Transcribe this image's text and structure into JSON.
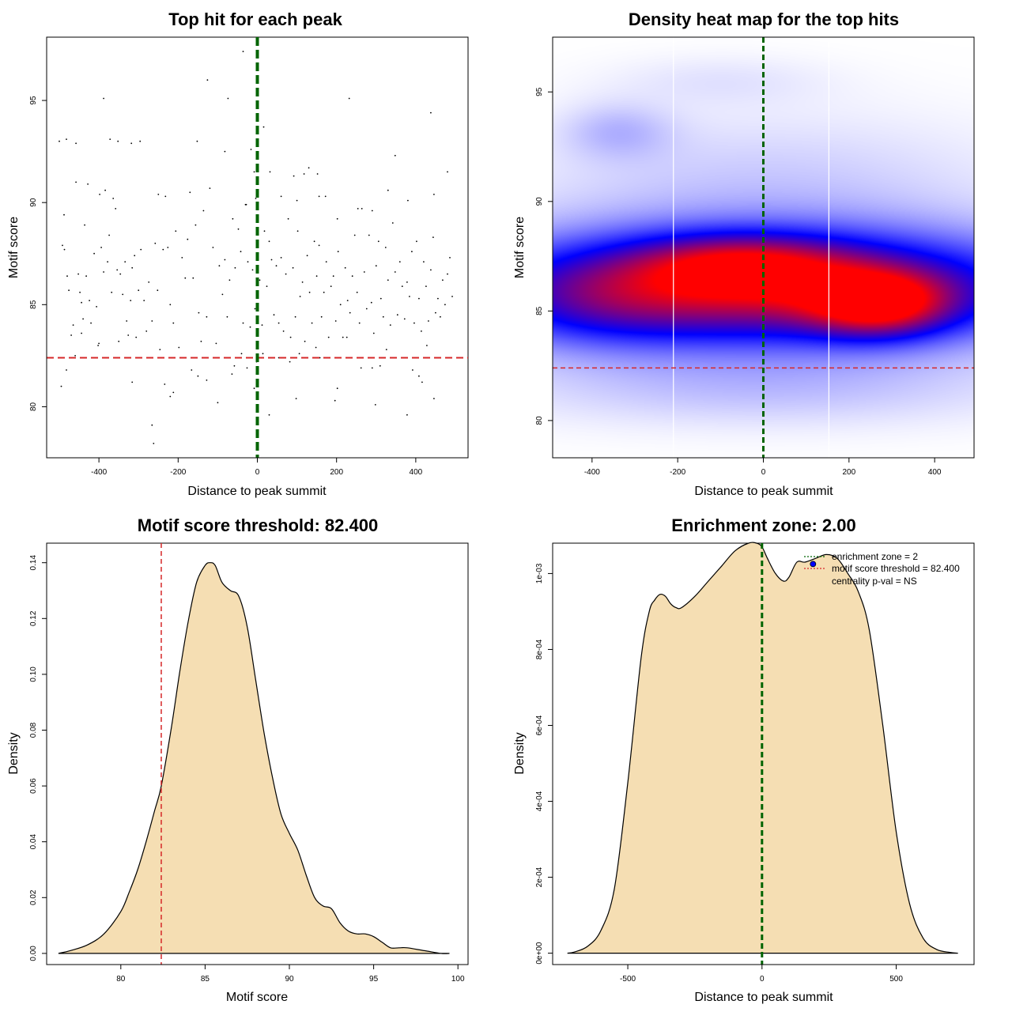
{
  "colors": {
    "threshold": "#d62728",
    "zone": "#006400",
    "fill": "#f5deb3",
    "point": "#000000",
    "heat_low": "#ffffff",
    "heat_mid": "#0000ff",
    "heat_high": "#ff0000",
    "pval_dot": "#0000ff"
  },
  "chart_data": [
    {
      "id": "scatter",
      "type": "scatter",
      "title": "Top hit for each peak",
      "xlabel": "Distance to peak summit",
      "ylabel": "Motif score",
      "xlim": [
        -532,
        532
      ],
      "ylim": [
        77.5,
        98.1
      ],
      "xticks": [
        -400,
        -200,
        0,
        200,
        400
      ],
      "yticks": [
        80,
        85,
        90,
        95
      ],
      "threshold": 82.4,
      "zone_x": 0,
      "points": [
        [
          -488,
          89.4
        ],
        [
          -492,
          87.9
        ],
        [
          -487,
          87.7
        ],
        [
          -480,
          86.4
        ],
        [
          -476,
          85.7
        ],
        [
          -470,
          83.5
        ],
        [
          -465,
          84.0
        ],
        [
          -458,
          91.0
        ],
        [
          -452,
          86.5
        ],
        [
          -448,
          85.6
        ],
        [
          -444,
          85.1
        ],
        [
          -440,
          84.3
        ],
        [
          -436,
          88.9
        ],
        [
          -432,
          86.4
        ],
        [
          -428,
          90.9
        ],
        [
          -424,
          85.2
        ],
        [
          -420,
          84.1
        ],
        [
          -412,
          87.5
        ],
        [
          -406,
          84.9
        ],
        [
          -402,
          83.0
        ],
        [
          -398,
          90.4
        ],
        [
          -394,
          87.8
        ],
        [
          -388,
          86.6
        ],
        [
          -384,
          90.6
        ],
        [
          -378,
          87.1
        ],
        [
          -374,
          88.4
        ],
        [
          -368,
          85.6
        ],
        [
          -364,
          90.2
        ],
        [
          -358,
          89.7
        ],
        [
          -354,
          86.7
        ],
        [
          -350,
          83.2
        ],
        [
          -346,
          86.5
        ],
        [
          -340,
          85.5
        ],
        [
          -334,
          87.1
        ],
        [
          -330,
          84.2
        ],
        [
          -326,
          83.5
        ],
        [
          -320,
          85.2
        ],
        [
          -316,
          86.8
        ],
        [
          -310,
          87.4
        ],
        [
          -306,
          83.4
        ],
        [
          -300,
          85.7
        ],
        [
          -294,
          87.7
        ],
        [
          -286,
          85.2
        ],
        [
          -280,
          83.7
        ],
        [
          -274,
          86.1
        ],
        [
          -266,
          84.2
        ],
        [
          -258,
          88.0
        ],
        [
          -252,
          85.7
        ],
        [
          -246,
          82.8
        ],
        [
          -238,
          87.7
        ],
        [
          -232,
          90.3
        ],
        [
          -226,
          87.8
        ],
        [
          -220,
          85.0
        ],
        [
          -212,
          84.1
        ],
        [
          -206,
          88.6
        ],
        [
          -198,
          82.9
        ],
        [
          -190,
          87.3
        ],
        [
          -182,
          86.3
        ],
        [
          -176,
          88.2
        ],
        [
          -170,
          90.5
        ],
        [
          -162,
          86.3
        ],
        [
          -156,
          88.9
        ],
        [
          -148,
          84.6
        ],
        [
          -142,
          83.2
        ],
        [
          -136,
          89.6
        ],
        [
          -128,
          84.4
        ],
        [
          -120,
          90.7
        ],
        [
          -112,
          87.8
        ],
        [
          -104,
          83.1
        ],
        [
          -96,
          86.9
        ],
        [
          -88,
          85.5
        ],
        [
          -82,
          87.2
        ],
        [
          -76,
          84.4
        ],
        [
          -70,
          86.2
        ],
        [
          -62,
          89.2
        ],
        [
          -56,
          86.8
        ],
        [
          -48,
          88.7
        ],
        [
          -42,
          87.6
        ],
        [
          -36,
          84.1
        ],
        [
          -30,
          89.9
        ],
        [
          -24,
          87.1
        ],
        [
          -18,
          83.9
        ],
        [
          -12,
          86.7
        ],
        [
          -6,
          84.8
        ],
        [
          -2,
          88.1
        ],
        [
          -495,
          81.0
        ],
        [
          -482,
          81.8
        ],
        [
          -460,
          82.5
        ],
        [
          -444,
          83.6
        ],
        [
          -400,
          83.1
        ],
        [
          -316,
          81.2
        ],
        [
          -266,
          79.1
        ],
        [
          -262,
          78.2
        ],
        [
          -234,
          81.1
        ],
        [
          -220,
          80.5
        ],
        [
          -212,
          80.7
        ],
        [
          -166,
          81.8
        ],
        [
          -150,
          81.5
        ],
        [
          -128,
          81.3
        ],
        [
          -100,
          80.2
        ],
        [
          -64,
          81.6
        ],
        [
          -58,
          82.0
        ],
        [
          -40,
          82.6
        ],
        [
          -26,
          81.9
        ],
        [
          -8,
          80.9
        ],
        [
          -2,
          82.2
        ],
        [
          -500,
          93.0
        ],
        [
          -482,
          93.1
        ],
        [
          -458,
          92.9
        ],
        [
          -388,
          95.1
        ],
        [
          -372,
          93.1
        ],
        [
          -352,
          93.0
        ],
        [
          -318,
          92.9
        ],
        [
          -296,
          93.0
        ],
        [
          -250,
          90.4
        ],
        [
          -152,
          93.0
        ],
        [
          -126,
          96.0
        ],
        [
          -82,
          92.5
        ],
        [
          -74,
          95.1
        ],
        [
          -36,
          97.4
        ],
        [
          -28,
          89.9
        ],
        [
          -16,
          92.6
        ],
        [
          -8,
          91.5
        ],
        [
          -4,
          90.2
        ],
        [
          6,
          86.2
        ],
        [
          12,
          84.0
        ],
        [
          18,
          88.6
        ],
        [
          24,
          85.9
        ],
        [
          30,
          88.1
        ],
        [
          36,
          87.2
        ],
        [
          42,
          84.5
        ],
        [
          48,
          86.9
        ],
        [
          54,
          84.1
        ],
        [
          60,
          87.3
        ],
        [
          66,
          83.7
        ],
        [
          72,
          86.5
        ],
        [
          78,
          89.2
        ],
        [
          84,
          83.4
        ],
        [
          90,
          86.8
        ],
        [
          96,
          84.4
        ],
        [
          102,
          88.6
        ],
        [
          108,
          85.4
        ],
        [
          114,
          86.1
        ],
        [
          120,
          83.2
        ],
        [
          126,
          87.4
        ],
        [
          132,
          85.6
        ],
        [
          138,
          84.1
        ],
        [
          144,
          88.1
        ],
        [
          150,
          86.4
        ],
        [
          156,
          87.9
        ],
        [
          162,
          84.4
        ],
        [
          168,
          85.6
        ],
        [
          174,
          87.1
        ],
        [
          180,
          83.4
        ],
        [
          186,
          85.9
        ],
        [
          192,
          86.4
        ],
        [
          198,
          84.2
        ],
        [
          204,
          87.6
        ],
        [
          210,
          85.0
        ],
        [
          216,
          83.4
        ],
        [
          222,
          86.8
        ],
        [
          228,
          85.2
        ],
        [
          234,
          84.6
        ],
        [
          240,
          86.4
        ],
        [
          246,
          88.4
        ],
        [
          252,
          85.6
        ],
        [
          258,
          84.1
        ],
        [
          264,
          89.7
        ],
        [
          270,
          86.6
        ],
        [
          276,
          84.8
        ],
        [
          282,
          88.4
        ],
        [
          288,
          85.1
        ],
        [
          294,
          83.6
        ],
        [
          300,
          86.9
        ],
        [
          306,
          88.1
        ],
        [
          312,
          85.3
        ],
        [
          318,
          84.4
        ],
        [
          324,
          87.8
        ],
        [
          330,
          86.2
        ],
        [
          336,
          84.0
        ],
        [
          342,
          89.0
        ],
        [
          348,
          86.6
        ],
        [
          354,
          84.5
        ],
        [
          360,
          87.1
        ],
        [
          366,
          85.9
        ],
        [
          372,
          84.3
        ],
        [
          378,
          86.1
        ],
        [
          384,
          85.4
        ],
        [
          390,
          87.6
        ],
        [
          396,
          84.1
        ],
        [
          402,
          88.1
        ],
        [
          408,
          85.3
        ],
        [
          414,
          83.7
        ],
        [
          420,
          87.1
        ],
        [
          426,
          85.9
        ],
        [
          432,
          84.2
        ],
        [
          438,
          86.7
        ],
        [
          444,
          88.3
        ],
        [
          450,
          84.6
        ],
        [
          456,
          85.3
        ],
        [
          462,
          84.4
        ],
        [
          468,
          86.2
        ],
        [
          474,
          85.0
        ],
        [
          480,
          86.5
        ],
        [
          486,
          87.3
        ],
        [
          492,
          85.4
        ],
        [
          14,
          82.6
        ],
        [
          30,
          79.6
        ],
        [
          54,
          82.4
        ],
        [
          82,
          82.2
        ],
        [
          98,
          80.4
        ],
        [
          106,
          82.6
        ],
        [
          148,
          82.9
        ],
        [
          158,
          82.4
        ],
        [
          196,
          80.3
        ],
        [
          202,
          80.9
        ],
        [
          226,
          83.4
        ],
        [
          262,
          81.9
        ],
        [
          290,
          81.9
        ],
        [
          298,
          80.1
        ],
        [
          310,
          82.0
        ],
        [
          326,
          82.8
        ],
        [
          378,
          79.6
        ],
        [
          392,
          81.8
        ],
        [
          408,
          81.5
        ],
        [
          416,
          81.2
        ],
        [
          428,
          83.0
        ],
        [
          446,
          80.4
        ],
        [
          458,
          82.4
        ],
        [
          16,
          93.7
        ],
        [
          32,
          91.5
        ],
        [
          60,
          90.3
        ],
        [
          92,
          91.3
        ],
        [
          100,
          90.1
        ],
        [
          118,
          91.4
        ],
        [
          130,
          91.7
        ],
        [
          152,
          91.4
        ],
        [
          156,
          90.3
        ],
        [
          172,
          90.3
        ],
        [
          202,
          89.2
        ],
        [
          232,
          95.1
        ],
        [
          254,
          89.7
        ],
        [
          290,
          89.6
        ],
        [
          330,
          90.6
        ],
        [
          348,
          92.3
        ],
        [
          380,
          90.1
        ],
        [
          438,
          94.4
        ],
        [
          446,
          90.4
        ],
        [
          480,
          91.5
        ]
      ]
    },
    {
      "id": "heatmap",
      "type": "heatmap",
      "title": "Density heat map for the top hits",
      "xlabel": "Distance to peak summit",
      "ylabel": "Motif score",
      "xlim": [
        -492,
        492
      ],
      "ylim": [
        78.3,
        97.5
      ],
      "xticks": [
        -400,
        -200,
        0,
        200,
        400
      ],
      "yticks": [
        80,
        85,
        90,
        95
      ],
      "threshold": 82.4,
      "zone_x": 0,
      "vlines": [
        -210,
        153
      ],
      "blobs": [
        {
          "x": 0,
          "y": 86.0,
          "sx": 460,
          "sy": 1.8,
          "w": 0.92
        },
        {
          "x": 270,
          "y": 85.3,
          "sx": 110,
          "sy": 1.0,
          "w": 0.58
        },
        {
          "x": -50,
          "y": 87.2,
          "sx": 170,
          "sy": 0.9,
          "w": 0.38
        },
        {
          "x": -380,
          "y": 85.4,
          "sx": 170,
          "sy": 1.5,
          "w": 0.15
        },
        {
          "x": -340,
          "y": 93.2,
          "sx": 90,
          "sy": 0.9,
          "w": 0.12
        },
        {
          "x": 0,
          "y": 90.8,
          "sx": 400,
          "sy": 2.2,
          "w": 0.1
        },
        {
          "x": 0,
          "y": 81.4,
          "sx": 420,
          "sy": 1.2,
          "w": 0.11
        },
        {
          "x": -100,
          "y": 95.5,
          "sx": 180,
          "sy": 0.8,
          "w": 0.05
        }
      ]
    },
    {
      "id": "score_density",
      "type": "area",
      "title": "Motif score threshold: 82.400",
      "xlabel": "Motif score",
      "ylabel": "Density",
      "xlim": [
        75.6,
        100.6
      ],
      "ylim": [
        -0.004,
        0.147
      ],
      "xticks": [
        80,
        85,
        90,
        95,
        100
      ],
      "yticks": [
        "0.00",
        "0.02",
        "0.04",
        "0.06",
        "0.08",
        "0.10",
        "0.12",
        "0.14"
      ],
      "threshold": 82.4,
      "x": [
        76.3,
        77,
        78,
        79,
        80,
        80.5,
        81,
        81.5,
        82,
        82.4,
        83,
        83.5,
        84,
        84.5,
        85,
        85.3,
        85.6,
        86,
        86.5,
        87,
        87.5,
        88,
        88.5,
        89,
        89.5,
        90,
        90.5,
        91,
        91.5,
        92,
        92.5,
        93,
        93.5,
        94,
        94.5,
        95,
        95.5,
        96,
        96.5,
        97,
        98,
        99,
        99.5
      ],
      "y": [
        0.0,
        0.001,
        0.003,
        0.007,
        0.015,
        0.022,
        0.03,
        0.04,
        0.051,
        0.06,
        0.081,
        0.101,
        0.119,
        0.133,
        0.139,
        0.14,
        0.139,
        0.133,
        0.13,
        0.128,
        0.117,
        0.098,
        0.079,
        0.063,
        0.05,
        0.043,
        0.037,
        0.028,
        0.02,
        0.017,
        0.016,
        0.011,
        0.008,
        0.007,
        0.007,
        0.006,
        0.004,
        0.002,
        0.002,
        0.002,
        0.001,
        0.0,
        0.0
      ]
    },
    {
      "id": "distance_density",
      "type": "area",
      "title": "Enrichment zone: 2.00",
      "xlabel": "Distance to peak summit",
      "ylabel": "Density",
      "xlim": [
        -780,
        790
      ],
      "ylim": [
        -3e-05,
        0.00108
      ],
      "xticks": [
        -500,
        0,
        500
      ],
      "yticks": [
        0,
        0.0002,
        0.0004,
        0.0006,
        0.0008,
        0.001
      ],
      "ytick_labels": [
        "0e+00",
        "2e-04",
        "4e-04",
        "6e-04",
        "8e-04",
        "1e-03"
      ],
      "zone_x": 0,
      "x": [
        -725,
        -700,
        -650,
        -600,
        -550,
        -500,
        -450,
        -420,
        -400,
        -380,
        -360,
        -340,
        -320,
        -300,
        -250,
        -200,
        -150,
        -100,
        -50,
        -20,
        0,
        20,
        50,
        80,
        100,
        130,
        160,
        200,
        240,
        280,
        320,
        360,
        400,
        450,
        500,
        550,
        600,
        650,
        700,
        730
      ],
      "y": [
        0.0,
        3e-06,
        1.8e-05,
        6e-05,
        0.00017,
        0.00045,
        0.00078,
        0.0009,
        0.00093,
        0.000945,
        0.00094,
        0.00092,
        0.00091,
        0.00091,
        0.00094,
        0.00098,
        0.00102,
        0.00106,
        0.00108,
        0.00108,
        0.00107,
        0.00104,
        0.001,
        0.00098,
        0.00099,
        0.00103,
        0.00103,
        0.00104,
        0.00105,
        0.00104,
        0.001,
        0.00095,
        0.00085,
        0.0006,
        0.00032,
        0.00013,
        4e-05,
        1e-05,
        2e-06,
        0.0
      ],
      "pval_point": {
        "x": 190,
        "y": 0.001025
      },
      "legend": [
        "enrichment zone = 2",
        "motif score threshold = 82.400",
        "centrality p-val = NS"
      ]
    }
  ]
}
